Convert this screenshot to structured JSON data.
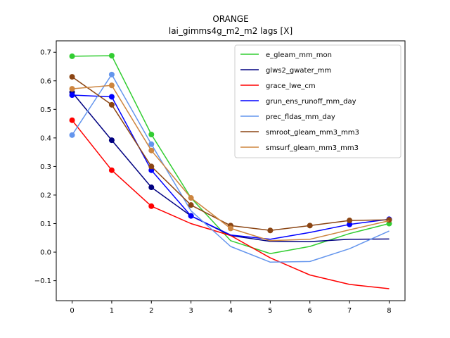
{
  "chart_data": {
    "type": "line",
    "title": "ORANGE",
    "subtitle": "lai_gimms4g_m2_m2 lags [X]",
    "xlabel": "",
    "ylabel": "",
    "xlim": [
      -0.4,
      8.4
    ],
    "ylim": [
      -0.17,
      0.74
    ],
    "x_ticks": [
      0,
      1,
      2,
      3,
      4,
      5,
      6,
      7,
      8
    ],
    "y_ticks": [
      -0.1,
      0.0,
      0.1,
      0.2,
      0.3,
      0.4,
      0.5,
      0.6,
      0.7
    ],
    "y_tick_labels": [
      "−0.1",
      "0.0",
      "0.1",
      "0.2",
      "0.3",
      "0.4",
      "0.5",
      "0.6",
      "0.7"
    ],
    "grid": false,
    "legend_position": "top-right",
    "x": [
      0,
      1,
      2,
      3,
      4,
      5,
      6,
      7,
      8
    ],
    "series": [
      {
        "name": "e_gleam_mm_mon",
        "color": "#32cd32",
        "values": [
          0.686,
          0.688,
          0.412,
          0.19,
          0.04,
          -0.005,
          0.02,
          0.065,
          0.1
        ],
        "markers": [
          0,
          1,
          2,
          8
        ]
      },
      {
        "name": "glws2_gwater_mm",
        "color": "#000080",
        "values": [
          0.56,
          0.392,
          0.227,
          0.127,
          0.058,
          0.038,
          0.037,
          0.045,
          0.046
        ],
        "markers": [
          0,
          1,
          2,
          3
        ]
      },
      {
        "name": "grace_lwe_cm",
        "color": "#ff0000",
        "values": [
          0.462,
          0.287,
          0.161,
          0.1,
          0.058,
          -0.02,
          -0.08,
          -0.113,
          -0.128
        ],
        "markers": [
          0,
          1,
          2
        ]
      },
      {
        "name": "grun_ens_runoff_mm_day",
        "color": "#0000ff",
        "values": [
          0.55,
          0.544,
          0.287,
          0.127,
          0.06,
          0.045,
          0.069,
          0.097,
          0.115
        ],
        "markers": [
          0,
          1,
          2,
          3,
          7,
          8
        ]
      },
      {
        "name": "prec_fldas_mm_day",
        "color": "#6495ed",
        "values": [
          0.41,
          0.622,
          0.378,
          0.145,
          0.02,
          -0.035,
          -0.033,
          0.012,
          0.074
        ],
        "markers": [
          0,
          1,
          2
        ]
      },
      {
        "name": "smroot_gleam_mm3_mm3",
        "color": "#8b4513",
        "values": [
          0.614,
          0.516,
          0.3,
          0.165,
          0.093,
          0.076,
          0.093,
          0.111,
          0.113
        ],
        "markers": [
          0,
          1,
          2,
          3,
          4,
          5,
          6,
          7,
          8
        ]
      },
      {
        "name": "smsurf_gleam_mm3_mm3",
        "color": "#cd853f",
        "values": [
          0.572,
          0.584,
          0.356,
          0.19,
          0.083,
          0.04,
          0.045,
          0.078,
          0.11
        ],
        "markers": [
          0,
          1,
          2,
          3,
          4
        ]
      }
    ]
  }
}
